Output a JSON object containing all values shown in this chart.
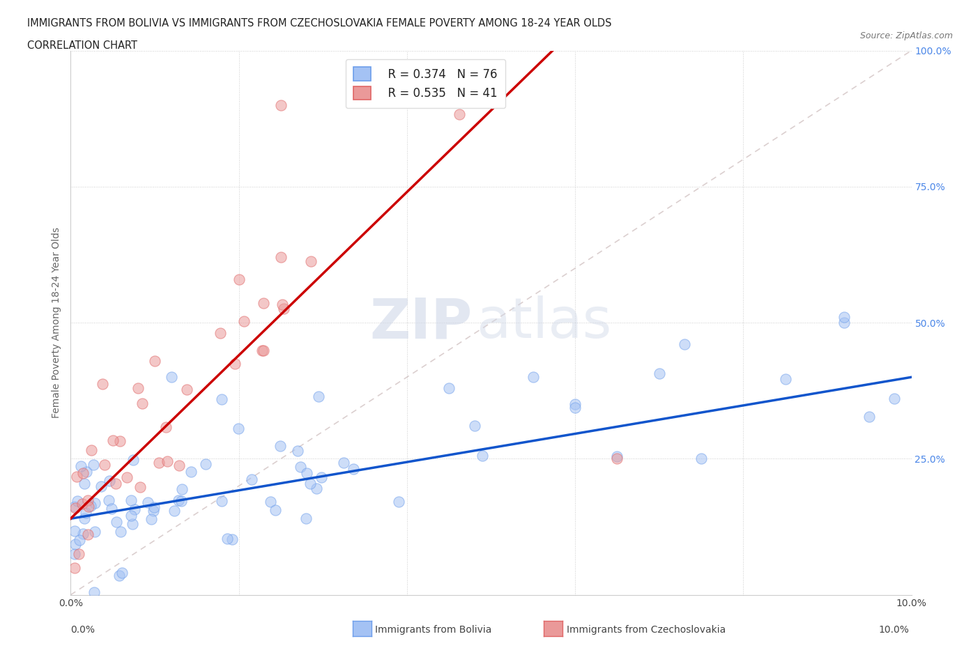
{
  "title_line1": "IMMIGRANTS FROM BOLIVIA VS IMMIGRANTS FROM CZECHOSLOVAKIA FEMALE POVERTY AMONG 18-24 YEAR OLDS",
  "title_line2": "CORRELATION CHART",
  "source_text": "Source: ZipAtlas.com",
  "ylabel": "Female Poverty Among 18-24 Year Olds",
  "xlim": [
    0.0,
    0.1
  ],
  "ylim": [
    0.0,
    1.0
  ],
  "bolivia_color": "#a4c2f4",
  "bolivia_edge_color": "#6d9eeb",
  "czechoslovakia_color": "#ea9999",
  "czechoslovakia_edge_color": "#e06666",
  "bolivia_line_color": "#1155cc",
  "czechoslovakia_line_color": "#cc0000",
  "right_tick_color": "#4a86e8",
  "legend_R_bolivia": "R = 0.374",
  "legend_N_bolivia": "N = 76",
  "legend_R_czechoslovakia": "R = 0.535",
  "legend_N_czechoslovakia": "N = 41"
}
